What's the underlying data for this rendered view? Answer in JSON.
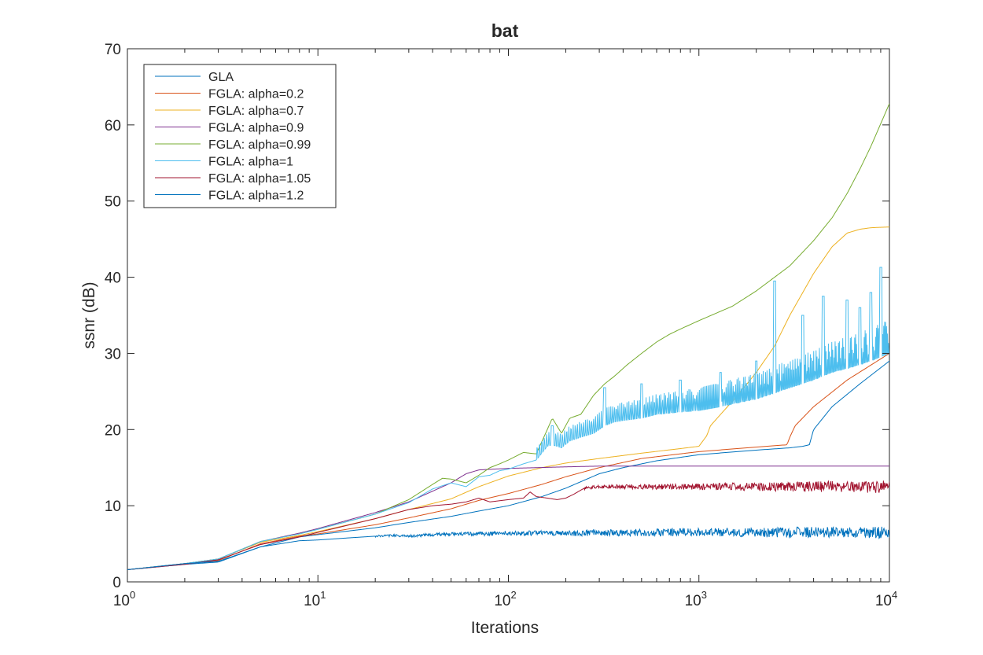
{
  "chart_data": {
    "type": "line",
    "title": "bat",
    "xlabel": "Iterations",
    "ylabel": "ssnr (dB)",
    "xscale": "log",
    "xlim": [
      1,
      10000
    ],
    "ylim": [
      0,
      70
    ],
    "grid": false,
    "legend_position": "top-left",
    "x_ticks": [
      {
        "value": 1,
        "base": "10",
        "exp": "0"
      },
      {
        "value": 10,
        "base": "10",
        "exp": "1"
      },
      {
        "value": 100,
        "base": "10",
        "exp": "2"
      },
      {
        "value": 1000,
        "base": "10",
        "exp": "3"
      },
      {
        "value": 10000,
        "base": "10",
        "exp": "4"
      }
    ],
    "y_ticks": [
      0,
      10,
      20,
      30,
      40,
      50,
      60,
      70
    ],
    "series": [
      {
        "name": "GLA",
        "color": "#0072bd",
        "x": [
          1,
          2,
          3,
          5,
          8,
          10,
          20,
          30,
          50,
          70,
          100,
          150,
          200,
          300,
          400,
          600,
          1000,
          2000,
          3000,
          3500,
          3800,
          4000,
          5000,
          7000,
          10000
        ],
        "y": [
          1.6,
          2.3,
          2.6,
          4.6,
          5.9,
          6.2,
          7.1,
          7.8,
          8.6,
          9.3,
          10.0,
          11.2,
          12.3,
          14.2,
          15.0,
          15.9,
          16.7,
          17.3,
          17.6,
          17.8,
          18.0,
          20.0,
          23.0,
          26.0,
          29.0
        ]
      },
      {
        "name": "FGLA: alpha=0.2",
        "color": "#d95319",
        "x": [
          1,
          2,
          3,
          5,
          8,
          10,
          20,
          30,
          50,
          70,
          100,
          150,
          200,
          300,
          500,
          1000,
          2000,
          2900,
          3000,
          3200,
          4000,
          6000,
          10000
        ],
        "y": [
          1.6,
          2.4,
          2.8,
          5.0,
          6.0,
          6.3,
          7.5,
          8.4,
          9.6,
          10.7,
          11.6,
          12.8,
          13.8,
          15.0,
          16.2,
          17.1,
          17.7,
          18.0,
          19.0,
          20.5,
          23.0,
          26.5,
          30.0
        ]
      },
      {
        "name": "FGLA: alpha=0.7",
        "color": "#edb120",
        "x": [
          1,
          2,
          3,
          5,
          8,
          10,
          20,
          30,
          50,
          70,
          100,
          150,
          200,
          300,
          500,
          800,
          1000,
          1100,
          1150,
          1300,
          1600,
          2000,
          2500,
          3000,
          4000,
          5000,
          6000,
          7000,
          8000,
          10000
        ],
        "y": [
          1.6,
          2.4,
          3.0,
          5.2,
          6.1,
          6.6,
          8.3,
          9.5,
          10.9,
          12.5,
          13.9,
          15.0,
          15.6,
          16.2,
          16.9,
          17.5,
          17.8,
          19.2,
          20.5,
          22.0,
          24.5,
          27.5,
          31.0,
          35.0,
          40.5,
          44.0,
          45.8,
          46.3,
          46.5,
          46.6
        ]
      },
      {
        "name": "FGLA: alpha=0.9",
        "color": "#7e2f8e",
        "x": [
          1,
          2,
          3,
          5,
          8,
          10,
          20,
          30,
          50,
          60,
          70,
          100,
          200,
          300,
          1000,
          10000
        ],
        "y": [
          1.6,
          2.4,
          3.0,
          5.3,
          6.4,
          7.0,
          9.1,
          10.5,
          13.0,
          14.2,
          14.7,
          14.9,
          15.1,
          15.2,
          15.2,
          15.2
        ]
      },
      {
        "name": "FGLA: alpha=0.99",
        "color": "#77ac30",
        "x": [
          1,
          2,
          3,
          5,
          8,
          10,
          20,
          30,
          40,
          45,
          50,
          60,
          70,
          80,
          90,
          100,
          120,
          140,
          160,
          170,
          190,
          210,
          240,
          280,
          320,
          360,
          420,
          500,
          600,
          700,
          800,
          1000,
          1500,
          2000,
          3000,
          4000,
          5000,
          6000,
          7000,
          8000,
          10000
        ],
        "y": [
          1.6,
          2.4,
          3.0,
          5.3,
          6.3,
          6.9,
          8.9,
          10.8,
          12.8,
          13.6,
          13.5,
          13.0,
          14.0,
          15.0,
          15.5,
          16.0,
          17.0,
          16.8,
          20.0,
          21.5,
          19.5,
          21.5,
          22.0,
          24.5,
          26.0,
          27.0,
          28.5,
          30.0,
          31.5,
          32.5,
          33.2,
          34.3,
          36.2,
          38.2,
          41.5,
          44.8,
          47.8,
          51.0,
          54.2,
          57.2,
          62.8
        ]
      },
      {
        "name": "FGLA: alpha=1",
        "color": "#4dbeee",
        "x": [
          1,
          2,
          3,
          5,
          8,
          10,
          20,
          30,
          40,
          50,
          60,
          70,
          80,
          90,
          100,
          120,
          140,
          160,
          170,
          190,
          210,
          240,
          280,
          320,
          360,
          400,
          500,
          600,
          800,
          1000,
          1300,
          1600,
          2000,
          2500,
          3000,
          3500,
          4000,
          5000,
          6000,
          7000,
          8000,
          9000,
          10000
        ],
        "y": [
          1.6,
          2.4,
          3.0,
          5.3,
          6.3,
          6.9,
          8.9,
          10.4,
          12.2,
          13.0,
          12.5,
          13.8,
          14.0,
          14.6,
          14.8,
          15.5,
          16.0,
          17.8,
          18.0,
          17.6,
          18.5,
          19.0,
          19.5,
          20.5,
          21.0,
          21.2,
          21.5,
          22.0,
          22.3,
          22.5,
          23.0,
          23.5,
          24.0,
          24.8,
          25.5,
          26.0,
          26.5,
          27.5,
          28.0,
          28.5,
          29.0,
          29.5,
          30.0
        ],
        "oscillation": [
          {
            "x": 170,
            "peak": 20.5
          },
          {
            "x": 320,
            "peak": 25.5
          },
          {
            "x": 500,
            "peak": 26.0
          },
          {
            "x": 800,
            "peak": 26.5
          },
          {
            "x": 1300,
            "peak": 27.5
          },
          {
            "x": 2000,
            "peak": 29.0
          },
          {
            "x": 2500,
            "peak": 39.5
          },
          {
            "x": 3500,
            "peak": 35.0
          },
          {
            "x": 4500,
            "peak": 37.5
          },
          {
            "x": 6000,
            "peak": 37.0
          },
          {
            "x": 7000,
            "peak": 36.0
          },
          {
            "x": 8000,
            "peak": 38.0
          },
          {
            "x": 9000,
            "peak": 41.3
          }
        ]
      },
      {
        "name": "FGLA: alpha=1.05",
        "color": "#a2142f",
        "x": [
          1,
          2,
          3,
          5,
          8,
          10,
          20,
          30,
          40,
          50,
          60,
          70,
          80,
          100,
          120,
          130,
          140,
          160,
          180,
          200,
          220,
          250,
          300,
          1000,
          10000
        ],
        "y": [
          1.6,
          2.3,
          2.9,
          4.9,
          5.9,
          6.5,
          8.3,
          9.5,
          10.0,
          10.2,
          10.5,
          11.0,
          10.5,
          10.8,
          11.0,
          11.8,
          11.2,
          11.0,
          10.8,
          11.0,
          11.5,
          12.3,
          12.5,
          12.5,
          12.5
        ],
        "noise_from_x": 250,
        "noise_amplitude": 0.4
      },
      {
        "name": "FGLA: alpha=1.2",
        "color": "#0072bd",
        "x": [
          1,
          2,
          3,
          5,
          8,
          10,
          15,
          20,
          25,
          30,
          40,
          50,
          70,
          100,
          200,
          500,
          1000,
          10000
        ],
        "y": [
          1.6,
          2.4,
          2.7,
          4.6,
          5.4,
          5.5,
          5.8,
          6.0,
          6.1,
          6.0,
          6.2,
          6.3,
          6.3,
          6.4,
          6.4,
          6.5,
          6.5,
          6.5
        ],
        "noise_from_x": 20,
        "noise_amplitude": 0.25
      }
    ]
  }
}
